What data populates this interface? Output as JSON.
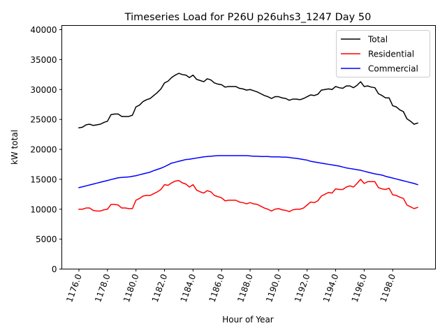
{
  "chart_data": {
    "type": "line",
    "title": "Timeseries Load for P26U p26uhs3_1247  Day 50",
    "xlabel": "Hour of Year",
    "ylabel": "kW total",
    "xlim": [
      1174.8,
      1201.0
    ],
    "ylim": [
      0,
      40700
    ],
    "x_start": 1176.0,
    "x_step": 0.25,
    "xticks": [
      1176,
      1178,
      1180,
      1182,
      1184,
      1186,
      1188,
      1190,
      1192,
      1194,
      1196,
      1198
    ],
    "xtick_labels": [
      "1176.0",
      "1178.0",
      "1180.0",
      "1182.0",
      "1184.0",
      "1186.0",
      "1188.0",
      "1190.0",
      "1192.0",
      "1194.0",
      "1196.0",
      "1198.0"
    ],
    "yticks": [
      0,
      5000,
      10000,
      15000,
      20000,
      25000,
      30000,
      35000,
      40000
    ],
    "ytick_labels": [
      "0",
      "5000",
      "10000",
      "15000",
      "20000",
      "25000",
      "30000",
      "35000",
      "40000"
    ],
    "grid": false,
    "legend_position": "top-right",
    "series": [
      {
        "name": "Total",
        "color": "#000000",
        "values": [
          23600,
          23700,
          24100,
          24200,
          24000,
          24100,
          24200,
          24500,
          24700,
          25800,
          25900,
          25900,
          25500,
          25500,
          25500,
          25700,
          27100,
          27400,
          28000,
          28300,
          28500,
          29000,
          29500,
          30100,
          31100,
          31400,
          32000,
          32400,
          32700,
          32500,
          32400,
          32000,
          32400,
          31700,
          31500,
          31300,
          31800,
          31600,
          31100,
          30900,
          30800,
          30400,
          30500,
          30500,
          30500,
          30200,
          30100,
          29900,
          30000,
          29800,
          29600,
          29300,
          29000,
          28800,
          28500,
          28800,
          28800,
          28600,
          28500,
          28200,
          28400,
          28400,
          28300,
          28500,
          28800,
          29100,
          29000,
          29200,
          29900,
          30000,
          30100,
          30000,
          30500,
          30300,
          30200,
          30600,
          30600,
          30300,
          30700,
          31300,
          30500,
          30600,
          30400,
          30300,
          29300,
          29000,
          28600,
          28600,
          27300,
          27100,
          26600,
          26300,
          25100,
          24700,
          24200,
          24400
        ]
      },
      {
        "name": "Residential",
        "color": "#ff0000",
        "values": [
          10000,
          10000,
          10200,
          10200,
          9800,
          9700,
          9700,
          9900,
          10000,
          10800,
          10800,
          10700,
          10200,
          10200,
          10100,
          10100,
          11500,
          11800,
          12200,
          12300,
          12300,
          12600,
          12900,
          13300,
          14100,
          14000,
          14400,
          14700,
          14800,
          14400,
          14200,
          13700,
          14100,
          13200,
          12900,
          12700,
          13100,
          12900,
          12300,
          12100,
          11900,
          11400,
          11500,
          11500,
          11500,
          11200,
          11100,
          10900,
          11100,
          10900,
          10800,
          10500,
          10200,
          10000,
          9700,
          10000,
          10100,
          9900,
          9800,
          9600,
          9900,
          10000,
          10000,
          10200,
          10700,
          11200,
          11100,
          11400,
          12200,
          12500,
          12800,
          12700,
          13400,
          13300,
          13300,
          13700,
          13900,
          13700,
          14300,
          15000,
          14300,
          14600,
          14600,
          14600,
          13600,
          13400,
          13300,
          13500,
          12400,
          12300,
          12000,
          11800,
          10700,
          10400,
          10100,
          10300
        ]
      },
      {
        "name": "Commercial",
        "color": "#0000ff",
        "values": [
          13600,
          13750,
          13900,
          14050,
          14200,
          14350,
          14500,
          14650,
          14800,
          14950,
          15100,
          15250,
          15300,
          15350,
          15400,
          15500,
          15600,
          15750,
          15900,
          16050,
          16200,
          16450,
          16650,
          16850,
          17100,
          17400,
          17700,
          17850,
          18000,
          18150,
          18300,
          18350,
          18450,
          18550,
          18650,
          18750,
          18800,
          18850,
          18900,
          18950,
          18950,
          18950,
          18950,
          18950,
          18950,
          18950,
          18950,
          18950,
          18900,
          18850,
          18850,
          18800,
          18800,
          18800,
          18750,
          18750,
          18750,
          18700,
          18700,
          18650,
          18550,
          18500,
          18400,
          18300,
          18200,
          18000,
          17900,
          17800,
          17700,
          17600,
          17500,
          17400,
          17300,
          17200,
          17050,
          16900,
          16800,
          16700,
          16600,
          16500,
          16350,
          16200,
          16050,
          15900,
          15800,
          15700,
          15500,
          15350,
          15200,
          15050,
          14900,
          14750,
          14600,
          14450,
          14300,
          14100
        ]
      }
    ]
  }
}
